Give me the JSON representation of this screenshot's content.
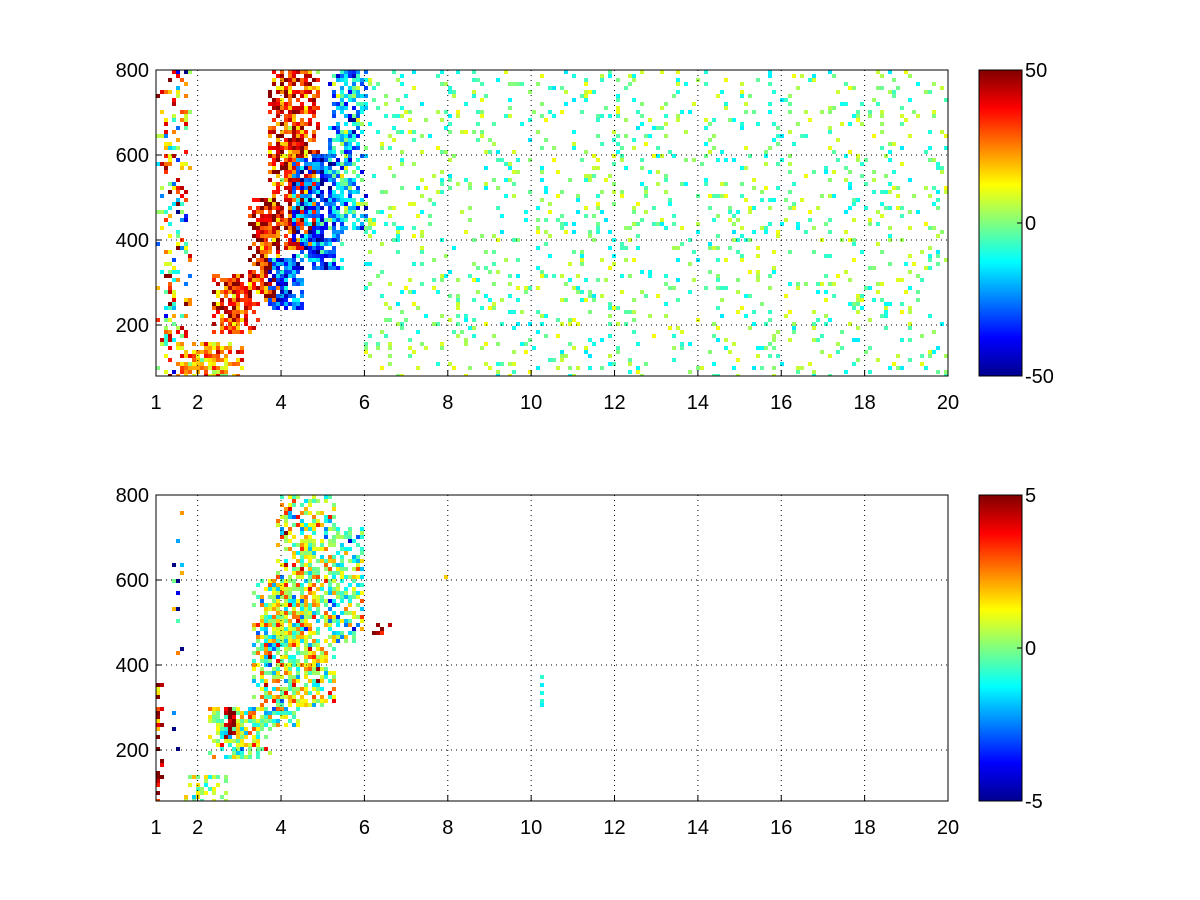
{
  "chart_data": [
    {
      "type": "heatmap",
      "title": "",
      "xlabel": "",
      "ylabel": "",
      "xlim": [
        1,
        20
      ],
      "ylim": [
        80,
        800
      ],
      "grid": true,
      "xticks": [
        1,
        2,
        4,
        6,
        8,
        10,
        12,
        14,
        16,
        18,
        20
      ],
      "yticks": [
        200,
        400,
        600,
        800
      ],
      "colorbar": {
        "ticks": [
          50,
          0,
          -50
        ],
        "range": [
          -50,
          50
        ],
        "colormap": "jet",
        "placement": "right"
      },
      "features": [
        {
          "x": 1.4,
          "y0": 80,
          "y1": 800,
          "value": 12,
          "spread": 25,
          "width": 0.45,
          "density": 0.35
        },
        {
          "x": 2.9,
          "y0": 180,
          "y1": 320,
          "value": 32,
          "spread": 12,
          "width": 0.6,
          "density": 0.9
        },
        {
          "x": 3.6,
          "y0": 250,
          "y1": 500,
          "value": 36,
          "spread": 12,
          "width": 0.35,
          "density": 0.9
        },
        {
          "x": 4.3,
          "y0": 380,
          "y1": 800,
          "value": 35,
          "spread": 14,
          "width": 0.6,
          "density": 0.9
        },
        {
          "x": 4.1,
          "y0": 240,
          "y1": 360,
          "value": -30,
          "spread": 10,
          "width": 0.45,
          "density": 0.85
        },
        {
          "x": 4.9,
          "y0": 330,
          "y1": 600,
          "value": -28,
          "spread": 12,
          "width": 0.6,
          "density": 0.85
        },
        {
          "x": 5.6,
          "y0": 420,
          "y1": 800,
          "value": -18,
          "spread": 14,
          "width": 0.45,
          "density": 0.8
        },
        {
          "x": 2.3,
          "y0": 80,
          "y1": 160,
          "value": 22,
          "spread": 10,
          "width": 0.8,
          "density": 0.85
        }
      ],
      "noise": {
        "value_range": [
          -15,
          12
        ],
        "density": 0.22,
        "xrange": [
          6,
          20
        ]
      }
    },
    {
      "type": "heatmap",
      "title": "",
      "xlabel": "",
      "ylabel": "",
      "xlim": [
        1,
        20
      ],
      "ylim": [
        80,
        800
      ],
      "grid": true,
      "xticks": [
        1,
        2,
        4,
        6,
        8,
        10,
        12,
        14,
        16,
        18,
        20
      ],
      "yticks": [
        200,
        400,
        600,
        800
      ],
      "colorbar": {
        "ticks": [
          5,
          0,
          -5
        ],
        "range": [
          -5,
          5
        ],
        "colormap": "jet",
        "placement": "right"
      },
      "features": [
        {
          "x": 3.0,
          "y0": 180,
          "y1": 300,
          "value": 0.5,
          "spread": 1.5,
          "width": 0.8,
          "density": 0.8
        },
        {
          "x": 2.8,
          "y0": 230,
          "y1": 300,
          "value": 4.5,
          "spread": 0.8,
          "width": 0.15,
          "density": 0.9
        },
        {
          "x": 3.9,
          "y0": 250,
          "y1": 600,
          "value": 0.4,
          "spread": 1.6,
          "width": 0.6,
          "density": 0.8
        },
        {
          "x": 4.6,
          "y0": 300,
          "y1": 800,
          "value": 0.8,
          "spread": 1.6,
          "width": 0.7,
          "density": 0.75
        },
        {
          "x": 5.5,
          "y0": 450,
          "y1": 720,
          "value": -0.3,
          "spread": 1.4,
          "width": 0.5,
          "density": 0.6
        },
        {
          "x": 2.2,
          "y0": 80,
          "y1": 140,
          "value": 0.2,
          "spread": 1.2,
          "width": 0.5,
          "density": 0.6
        },
        {
          "x": 1.05,
          "y0": 80,
          "y1": 360,
          "value": 4.2,
          "spread": 2.0,
          "width": 0.1,
          "density": 0.5
        },
        {
          "x": 1.5,
          "y0": 180,
          "y1": 760,
          "value": 0.0,
          "spread": 4.0,
          "width": 0.15,
          "density": 0.15
        },
        {
          "x": 6.4,
          "y0": 460,
          "y1": 500,
          "value": 4.5,
          "spread": 0.6,
          "width": 0.3,
          "density": 0.4
        },
        {
          "x": 8.0,
          "y0": 570,
          "y1": 610,
          "value": 1.5,
          "spread": 0.5,
          "width": 0.05,
          "density": 0.9
        },
        {
          "x": 10.3,
          "y0": 290,
          "y1": 400,
          "value": -1.0,
          "spread": 0.4,
          "width": 0.05,
          "density": 0.6
        }
      ],
      "noise": {
        "value_range": [
          -1,
          1
        ],
        "density": 0.0,
        "xrange": [
          6,
          20
        ]
      }
    }
  ]
}
